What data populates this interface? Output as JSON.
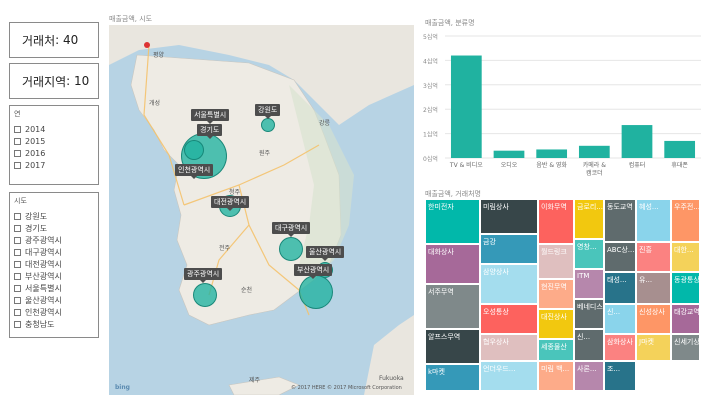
{
  "cards": {
    "customers": {
      "label": "거래처",
      "value": "40"
    },
    "regions": {
      "label": "거래지역",
      "value": "10"
    }
  },
  "year_slicer": {
    "title": "연",
    "items": [
      "2014",
      "2015",
      "2016",
      "2017"
    ]
  },
  "region_slicer": {
    "title": "시도",
    "items": [
      "강원도",
      "경기도",
      "광주광역시",
      "대구광역시",
      "대전광역시",
      "부산광역시",
      "서울특별시",
      "울산광역시",
      "인천광역시",
      "충청남도"
    ]
  },
  "map": {
    "title": "매출금액, 시도",
    "labels": {
      "seoul": "서울특별시",
      "gangwon": "강원도",
      "gyeonggi": "경기도",
      "incheon": "인천광역시",
      "daejeon": "대전광역시",
      "daegu": "대구광역시",
      "ulsan": "울산광역시",
      "busan": "부산광역시",
      "gwangju": "광주광역시"
    },
    "place_names": {
      "pyongyang": "평양",
      "gaesong": "개성",
      "gangneung": "강릉",
      "wonju": "원주",
      "cheongju": "청주",
      "jeonju": "전주",
      "suncheon": "순천",
      "jeju": "제주"
    },
    "credits": {
      "bing": "bing",
      "copyright": "© 2017 HERE  © 2017 Microsoft Corporation",
      "fukuoka": "Fukuoka"
    },
    "bubble_color": "#20b2a0"
  },
  "chart_data": [
    {
      "type": "bar",
      "title": "매출금액, 분류명",
      "categories": [
        "TV & 비디오",
        "오디오",
        "음반 & 영화",
        "카메라 & 캠코더",
        "컴퓨터",
        "휴대폰"
      ],
      "values": [
        4.2,
        0.3,
        0.35,
        0.5,
        1.35,
        0.7
      ],
      "unit": "십억",
      "ylim": [
        0,
        5
      ],
      "yticks": [
        "0십억",
        "1십억",
        "2십억",
        "3십억",
        "4십억",
        "5십억"
      ],
      "color": "#20b2a0",
      "grid": true
    },
    {
      "type": "treemap",
      "title": "매출금액, 거래처명",
      "tiles": [
        "한미전자",
        "미림상사",
        "이화무역",
        "금로리...",
        "동도교역",
        "혜성...",
        "우주전...",
        "대화상사",
        "금강",
        "월드링크",
        "영창...",
        "ABC상...",
        "진흥",
        "대한...",
        "서주무역",
        "삼양상사",
        "현진무역",
        "ITM",
        "태성...",
        "유...",
        "동광통상",
        "알프스무역",
        "오성통상",
        "대진상사",
        "베네디스",
        "신...",
        "신성상사",
        "태강교역",
        "k마켓",
        "협우상사",
        "세종물산",
        "신...",
        "삼화상사",
        "J마켓",
        "신세기상사",
        "언더우드...",
        "미림 백...",
        "사론...",
        "조..."
      ]
    }
  ]
}
